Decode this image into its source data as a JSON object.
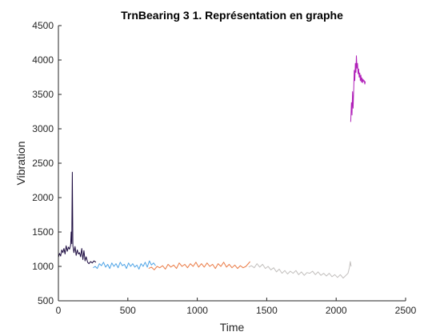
{
  "chart_data": {
    "type": "line",
    "title": "TrnBearing 3 1. Représentation en graphe",
    "xlabel": "Time",
    "ylabel": "Vibration",
    "xlim": [
      0,
      2500
    ],
    "ylim": [
      500,
      4500
    ],
    "xticks": [
      0,
      500,
      1000,
      1500,
      2000,
      2500
    ],
    "yticks": [
      500,
      1000,
      1500,
      2000,
      2500,
      3000,
      3500,
      4000,
      4500
    ],
    "grid": false,
    "series": [
      {
        "color": "#1b0a3f",
        "points": [
          [
            0,
            1130
          ],
          [
            8,
            1190
          ],
          [
            16,
            1150
          ],
          [
            24,
            1240
          ],
          [
            32,
            1200
          ],
          [
            40,
            1260
          ],
          [
            48,
            1180
          ],
          [
            56,
            1300
          ],
          [
            64,
            1220
          ],
          [
            72,
            1280
          ],
          [
            80,
            1250
          ],
          [
            88,
            1310
          ],
          [
            92,
            1500
          ],
          [
            96,
            1330
          ],
          [
            100,
            2370
          ],
          [
            104,
            1300
          ],
          [
            112,
            1200
          ],
          [
            120,
            1290
          ],
          [
            128,
            1160
          ],
          [
            136,
            1240
          ],
          [
            144,
            1180
          ],
          [
            152,
            1200
          ],
          [
            160,
            1140
          ],
          [
            168,
            1260
          ],
          [
            176,
            1100
          ],
          [
            184,
            1230
          ],
          [
            192,
            1080
          ],
          [
            200,
            1140
          ],
          [
            210,
            1060
          ],
          [
            220,
            1040
          ],
          [
            232,
            1070
          ],
          [
            244,
            1050
          ],
          [
            256,
            1080
          ],
          [
            270,
            1060
          ]
        ]
      },
      {
        "color": "#4da3e6",
        "points": [
          [
            250,
            980
          ],
          [
            265,
            1000
          ],
          [
            280,
            970
          ],
          [
            295,
            1040
          ],
          [
            310,
            1010
          ],
          [
            325,
            1060
          ],
          [
            340,
            990
          ],
          [
            355,
            1030
          ],
          [
            370,
            970
          ],
          [
            385,
            1050
          ],
          [
            400,
            1000
          ],
          [
            415,
            1040
          ],
          [
            430,
            980
          ],
          [
            445,
            1060
          ],
          [
            460,
            1010
          ],
          [
            475,
            1030
          ],
          [
            490,
            970
          ],
          [
            505,
            1050
          ],
          [
            520,
            1000
          ],
          [
            535,
            1040
          ],
          [
            550,
            990
          ],
          [
            565,
            1020
          ],
          [
            580,
            960
          ],
          [
            595,
            1040
          ],
          [
            610,
            1000
          ],
          [
            625,
            1060
          ],
          [
            640,
            990
          ],
          [
            655,
            1080
          ],
          [
            670,
            1020
          ],
          [
            685,
            1050
          ],
          [
            700,
            1010
          ]
        ]
      },
      {
        "color": "#ea7a44",
        "points": [
          [
            650,
            970
          ],
          [
            670,
            990
          ],
          [
            690,
            950
          ],
          [
            710,
            1000
          ],
          [
            730,
            980
          ],
          [
            750,
            1010
          ],
          [
            770,
            960
          ],
          [
            790,
            1030
          ],
          [
            810,
            990
          ],
          [
            830,
            1020
          ],
          [
            850,
            970
          ],
          [
            870,
            1050
          ],
          [
            890,
            1000
          ],
          [
            910,
            1030
          ],
          [
            930,
            980
          ],
          [
            950,
            1040
          ],
          [
            970,
            1000
          ],
          [
            990,
            1060
          ],
          [
            1010,
            990
          ],
          [
            1030,
            1040
          ],
          [
            1050,
            990
          ],
          [
            1070,
            1050
          ],
          [
            1090,
            1000
          ],
          [
            1110,
            1030
          ],
          [
            1130,
            970
          ],
          [
            1150,
            1040
          ],
          [
            1170,
            1000
          ],
          [
            1190,
            1060
          ],
          [
            1210,
            990
          ],
          [
            1230,
            1030
          ],
          [
            1250,
            980
          ],
          [
            1270,
            1020
          ],
          [
            1290,
            970
          ],
          [
            1310,
            1010
          ],
          [
            1330,
            980
          ],
          [
            1350,
            1000
          ],
          [
            1380,
            1070
          ]
        ]
      },
      {
        "color": "#c2bfbd",
        "points": [
          [
            1370,
            990
          ],
          [
            1390,
            1010
          ],
          [
            1410,
            980
          ],
          [
            1430,
            1040
          ],
          [
            1450,
            990
          ],
          [
            1470,
            1030
          ],
          [
            1490,
            970
          ],
          [
            1510,
            1000
          ],
          [
            1530,
            950
          ],
          [
            1550,
            980
          ],
          [
            1570,
            920
          ],
          [
            1590,
            960
          ],
          [
            1610,
            900
          ],
          [
            1630,
            940
          ],
          [
            1650,
            890
          ],
          [
            1670,
            930
          ],
          [
            1690,
            900
          ],
          [
            1710,
            940
          ],
          [
            1730,
            880
          ],
          [
            1750,
            920
          ],
          [
            1770,
            870
          ],
          [
            1790,
            910
          ],
          [
            1810,
            900
          ],
          [
            1830,
            930
          ],
          [
            1850,
            880
          ],
          [
            1870,
            920
          ],
          [
            1890,
            870
          ],
          [
            1910,
            900
          ],
          [
            1930,
            860
          ],
          [
            1950,
            900
          ],
          [
            1970,
            850
          ],
          [
            1990,
            880
          ],
          [
            2010,
            840
          ],
          [
            2030,
            880
          ],
          [
            2050,
            830
          ],
          [
            2070,
            870
          ],
          [
            2085,
            900
          ],
          [
            2095,
            980
          ],
          [
            2102,
            1070
          ],
          [
            2108,
            1000
          ]
        ]
      },
      {
        "color": "#b020b8",
        "points": [
          [
            2105,
            3100
          ],
          [
            2110,
            3380
          ],
          [
            2114,
            3200
          ],
          [
            2118,
            3540
          ],
          [
            2122,
            3300
          ],
          [
            2126,
            3560
          ],
          [
            2130,
            3850
          ],
          [
            2134,
            3700
          ],
          [
            2138,
            3950
          ],
          [
            2142,
            3820
          ],
          [
            2146,
            4060
          ],
          [
            2150,
            3880
          ],
          [
            2154,
            3950
          ],
          [
            2158,
            3800
          ],
          [
            2162,
            3870
          ],
          [
            2166,
            3750
          ],
          [
            2170,
            3810
          ],
          [
            2174,
            3700
          ],
          [
            2178,
            3780
          ],
          [
            2182,
            3680
          ],
          [
            2186,
            3740
          ],
          [
            2190,
            3670
          ],
          [
            2194,
            3720
          ],
          [
            2198,
            3690
          ],
          [
            2202,
            3700
          ],
          [
            2206,
            3650
          ],
          [
            2210,
            3690
          ]
        ]
      }
    ]
  }
}
